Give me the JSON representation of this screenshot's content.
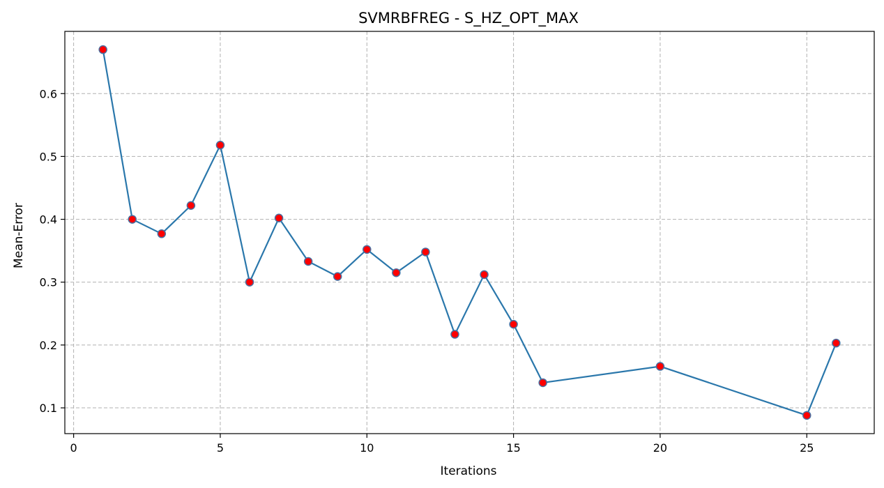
{
  "chart_data": {
    "type": "line",
    "title": "SVMRBFREG - S_HZ_OPT_MAX",
    "xlabel": "Iterations",
    "ylabel": "Mean-Error",
    "xlim": [
      -0.3,
      27.3
    ],
    "ylim": [
      0.059,
      0.699
    ],
    "xticks": [
      0,
      5,
      10,
      15,
      20,
      25
    ],
    "yticks": [
      0.1,
      0.2,
      0.3,
      0.4,
      0.5,
      0.6
    ],
    "grid": true,
    "series": [
      {
        "line_color": "#2a77ab",
        "marker_face": "#ff0000",
        "marker_edge": "#4a6fa0",
        "x": [
          1,
          2,
          3,
          4,
          5,
          6,
          7,
          8,
          9,
          10,
          11,
          12,
          13,
          14,
          15,
          16,
          20,
          25,
          26
        ],
        "values": [
          0.67,
          0.4,
          0.377,
          0.422,
          0.518,
          0.3,
          0.402,
          0.333,
          0.309,
          0.352,
          0.315,
          0.348,
          0.217,
          0.312,
          0.233,
          0.14,
          0.166,
          0.088,
          0.203
        ]
      }
    ]
  }
}
